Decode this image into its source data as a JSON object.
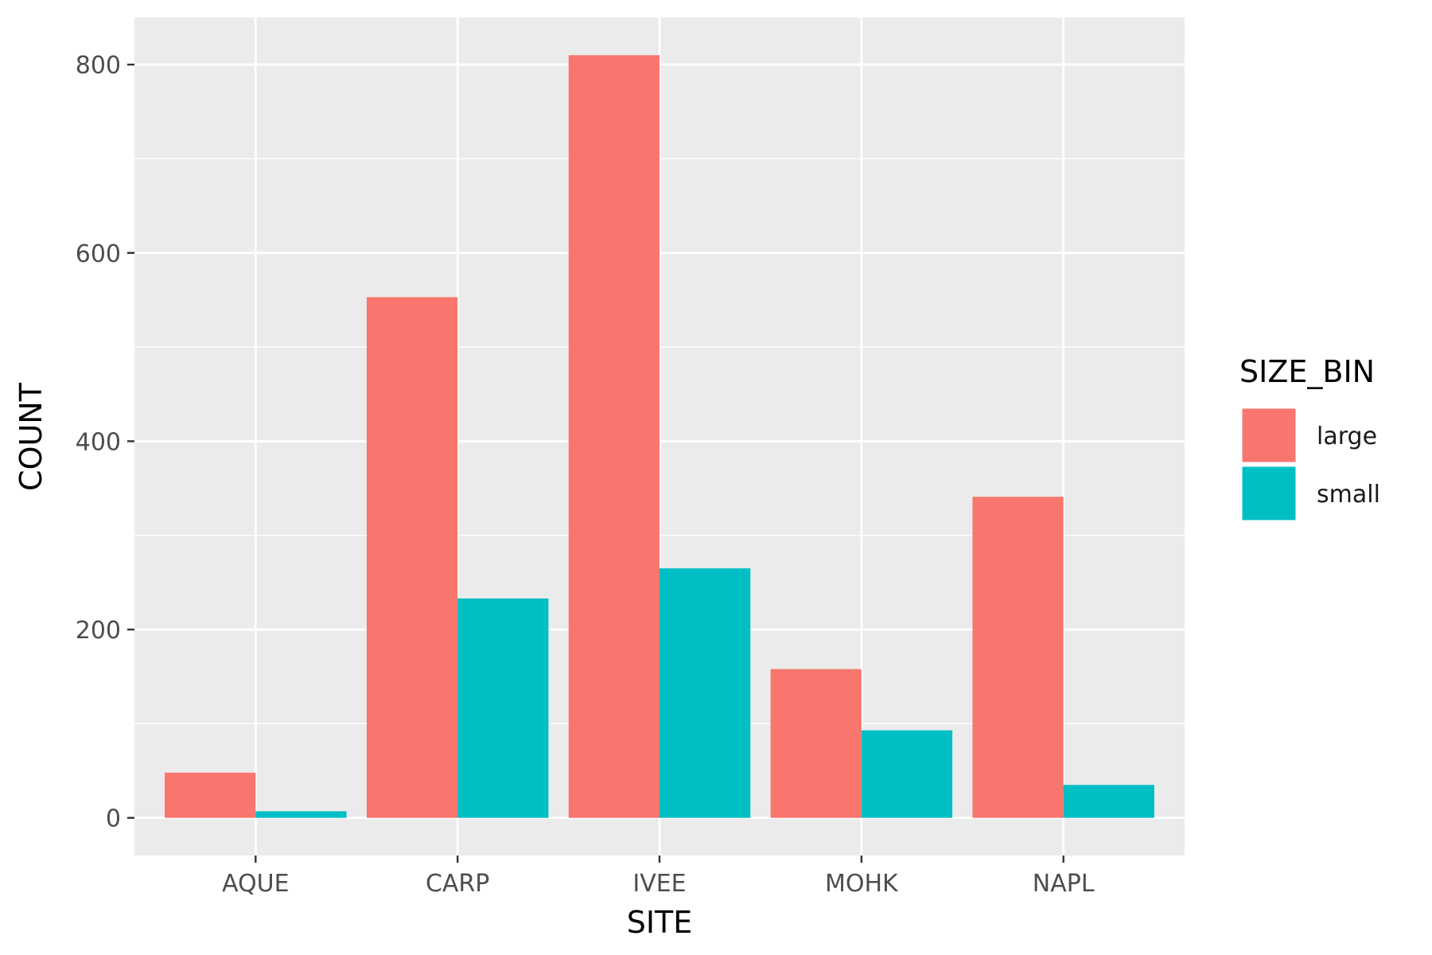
{
  "chart_data": {
    "type": "bar",
    "categories": [
      "AQUE",
      "CARP",
      "IVEE",
      "MOHK",
      "NAPL"
    ],
    "series": [
      {
        "name": "large",
        "values": [
          48,
          553,
          810,
          158,
          341
        ]
      },
      {
        "name": "small",
        "values": [
          7,
          233,
          265,
          93,
          35
        ]
      }
    ],
    "xlabel": "SITE",
    "ylabel": "COUNT",
    "ylim": [
      -40,
      850
    ],
    "yticks": [
      0,
      200,
      400,
      600,
      800
    ],
    "ytick_labels": [
      "0",
      "200",
      "400",
      "600",
      "800"
    ],
    "legend": {
      "title": "SIZE_BIN",
      "position": "right"
    },
    "grid": true,
    "colors": {
      "large": "#F8766D",
      "small": "#00BFC4",
      "panel": "#EBEBEB",
      "grid": "#FFFFFF"
    }
  }
}
